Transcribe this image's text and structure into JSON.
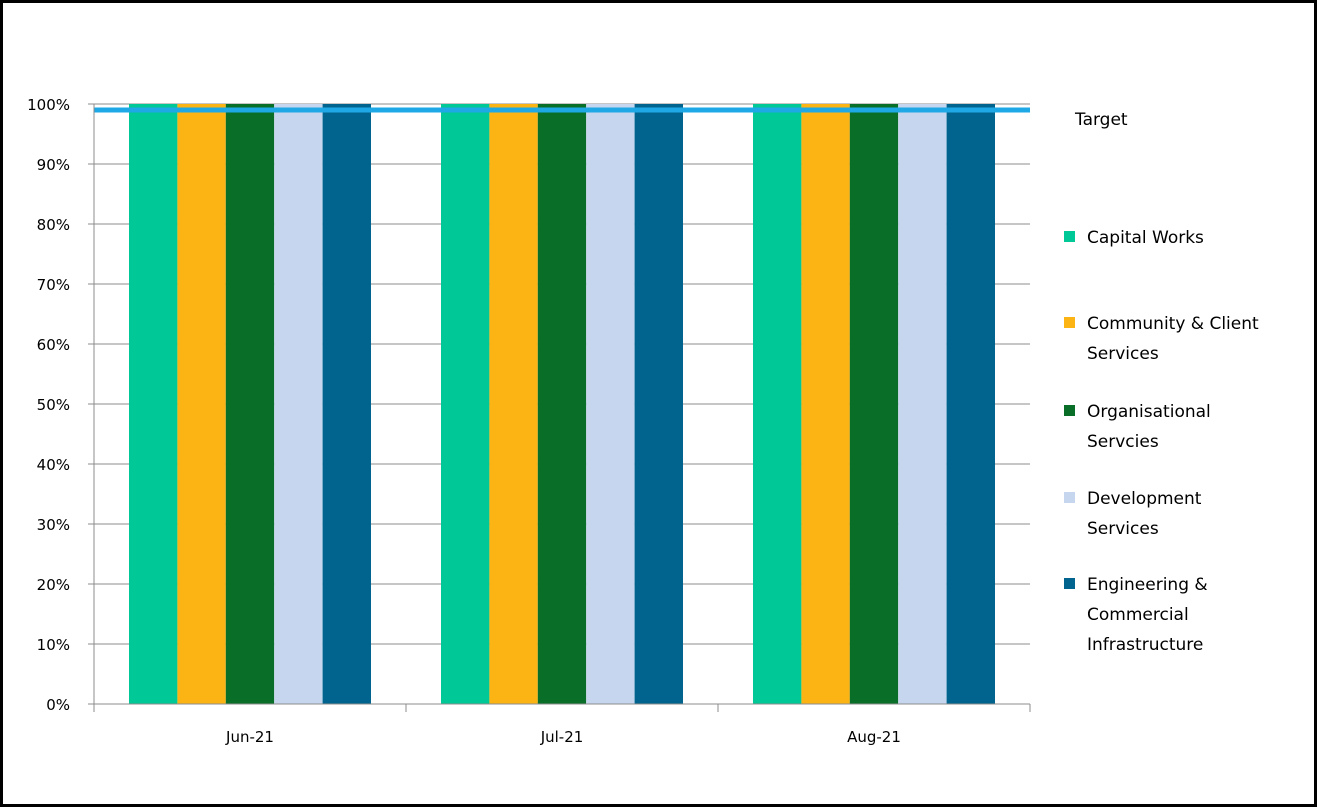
{
  "chart_data": {
    "type": "bar",
    "title": "",
    "xlabel": "",
    "ylabel": "",
    "categories": [
      "Jun-21",
      "Jul-21",
      "Aug-21"
    ],
    "series": [
      {
        "name": "Capital Works",
        "legend_lines": [
          "Capital Works"
        ],
        "color": "#00c896",
        "values": [
          1.0,
          1.0,
          1.0
        ]
      },
      {
        "name": "Community & Client Services",
        "legend_lines": [
          "Community & Client",
          "Services"
        ],
        "color": "#fbb414",
        "values": [
          1.0,
          1.0,
          1.0
        ]
      },
      {
        "name": "Organisational Servcies",
        "legend_lines": [
          "Organisational",
          "Servcies"
        ],
        "color": "#086e28",
        "values": [
          1.0,
          1.0,
          1.0
        ]
      },
      {
        "name": "Development Services",
        "legend_lines": [
          "Development",
          "Services"
        ],
        "color": "#c6d6ee",
        "values": [
          1.0,
          1.0,
          1.0
        ]
      },
      {
        "name": "Engineering & Commercial Infrastructure",
        "legend_lines": [
          "Engineering &",
          "Commercial",
          "Infrastructure"
        ],
        "color": "#00648e",
        "values": [
          1.0,
          1.0,
          1.0
        ]
      }
    ],
    "target": {
      "name": "Target",
      "value": 0.99,
      "color": "#1fa8e6"
    },
    "ylim": [
      0,
      1
    ],
    "y_ticks": [
      0,
      0.1,
      0.2,
      0.3,
      0.4,
      0.5,
      0.6,
      0.7,
      0.8,
      0.9,
      1.0
    ],
    "y_tick_labels": [
      "0%",
      "10%",
      "20%",
      "30%",
      "40%",
      "50%",
      "60%",
      "70%",
      "80%",
      "90%",
      "100%"
    ],
    "grid": true,
    "legend_position": "right"
  }
}
